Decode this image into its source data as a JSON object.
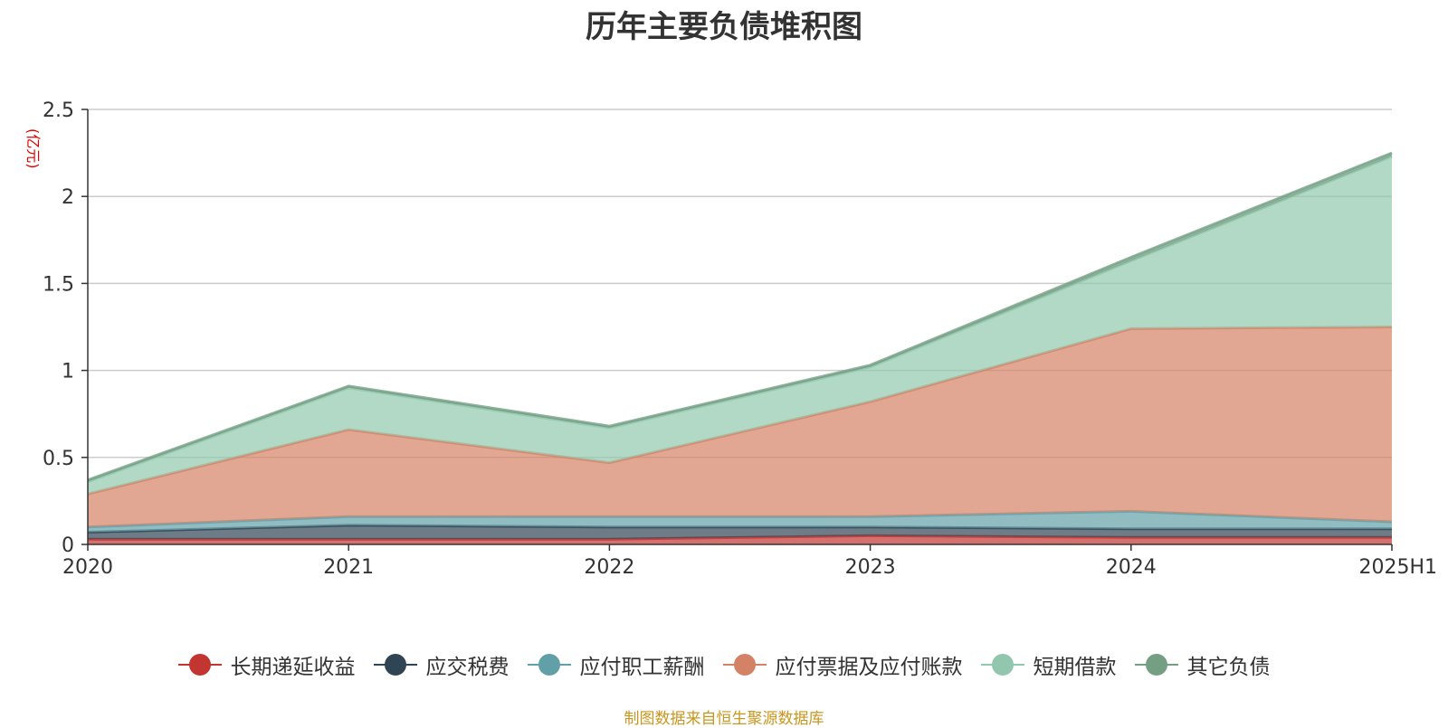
{
  "chart_data": {
    "type": "area",
    "stacked": true,
    "title": "历年主要负债堆积图",
    "y_unit": "(亿元)",
    "x": [
      "2020",
      "2021",
      "2022",
      "2023",
      "2024",
      "2025H1"
    ],
    "ylim": [
      0,
      2.5
    ],
    "yticks": [
      "0",
      "0.5",
      "1",
      "1.5",
      "2",
      "2.5"
    ],
    "grid": true,
    "legend_position": "bottom",
    "series": [
      {
        "name": "长期递延收益",
        "color": "#c23531",
        "values": [
          0.03,
          0.03,
          0.03,
          0.05,
          0.04,
          0.04
        ]
      },
      {
        "name": "应交税费",
        "color": "#2f4554",
        "values": [
          0.04,
          0.08,
          0.07,
          0.05,
          0.05,
          0.05
        ]
      },
      {
        "name": "应付职工薪酬",
        "color": "#61a0a8",
        "values": [
          0.03,
          0.05,
          0.06,
          0.06,
          0.1,
          0.04
        ]
      },
      {
        "name": "应付票据及应付账款",
        "color": "#d48265",
        "values": [
          0.19,
          0.5,
          0.31,
          0.66,
          1.05,
          1.12
        ]
      },
      {
        "name": "短期借款",
        "color": "#91c7ae",
        "values": [
          0.07,
          0.24,
          0.2,
          0.2,
          0.39,
          0.98
        ]
      },
      {
        "name": "其它负债",
        "color": "#749f83",
        "values": [
          0.01,
          0.01,
          0.01,
          0.01,
          0.02,
          0.02
        ]
      }
    ]
  },
  "source_note": "制图数据来自恒生聚源数据库"
}
